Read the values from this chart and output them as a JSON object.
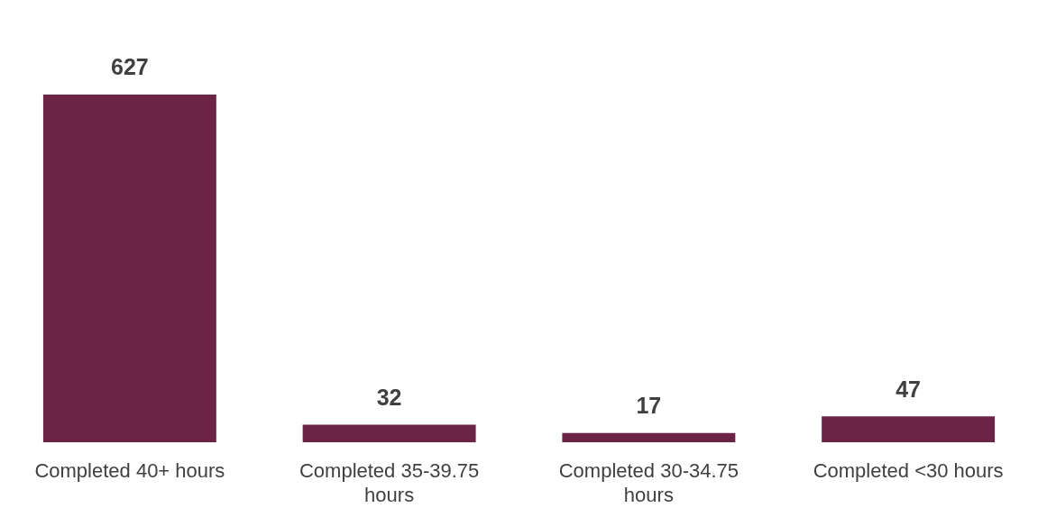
{
  "chart_data": {
    "type": "bar",
    "categories": [
      "Completed 40+ hours",
      "Completed 35-39.75 hours",
      "Completed 30-34.75 hours",
      "Completed <30 hours"
    ],
    "values": [
      627,
      32,
      17,
      47
    ],
    "color": "#6b2346",
    "data_labels": true,
    "grid": false,
    "legend": false
  }
}
